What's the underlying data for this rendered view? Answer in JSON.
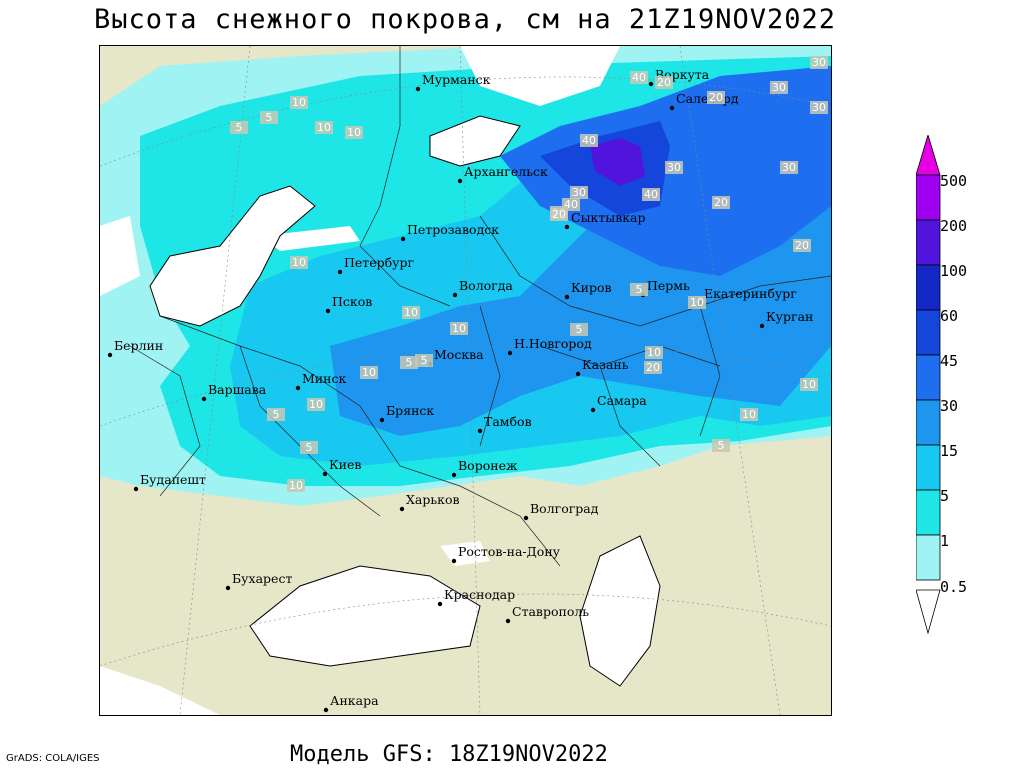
{
  "title": "Высота снежного покрова, см на 21Z19NOV2022",
  "subtitle": "Модель GFS: 18Z19NOV2022",
  "credit": "GrADS: COLA/IGES",
  "colors": {
    "land": "#e6e6c8",
    "water": "#ffffff",
    "snow_05": "#9ff3f3",
    "snow_1": "#1ee6e6",
    "snow_5": "#19c8f0",
    "snow_15": "#1e96f0",
    "snow_30": "#1e6ef0",
    "snow_45": "#1446dc",
    "snow_60": "#1428c8",
    "snow_100": "#5014dc",
    "snow_200": "#a000f0",
    "snow_500": "#e600e6"
  },
  "legend": {
    "levels": [
      "500",
      "200",
      "100",
      "60",
      "45",
      "30",
      "15",
      "5",
      "1",
      "0.5"
    ]
  },
  "cities": [
    {
      "name": "Мурманск"
    },
    {
      "name": "Воркута"
    },
    {
      "name": "Салехард"
    },
    {
      "name": "Архангельск"
    },
    {
      "name": "Сыктывкар"
    },
    {
      "name": "Петрозаводск"
    },
    {
      "name": "Петербург"
    },
    {
      "name": "Вологда"
    },
    {
      "name": "Киров"
    },
    {
      "name": "Пермь"
    },
    {
      "name": "Екатеринбург"
    },
    {
      "name": "Курган"
    },
    {
      "name": "Псков"
    },
    {
      "name": "Берлин"
    },
    {
      "name": "Москва"
    },
    {
      "name": "Н.Новгород"
    },
    {
      "name": "Казань"
    },
    {
      "name": "Варшава"
    },
    {
      "name": "Минск"
    },
    {
      "name": "Брянск"
    },
    {
      "name": "Тамбов"
    },
    {
      "name": "Самара"
    },
    {
      "name": "Киев"
    },
    {
      "name": "Воронеж"
    },
    {
      "name": "Будапешт"
    },
    {
      "name": "Харьков"
    },
    {
      "name": "Волгоград"
    },
    {
      "name": "Ростов-на-Дону"
    },
    {
      "name": "Бухарест"
    },
    {
      "name": "Краснодар"
    },
    {
      "name": "Ставрополь"
    },
    {
      "name": "Анкара"
    }
  ],
  "contour_labels": [
    "40",
    "20",
    "30",
    "30",
    "20",
    "10",
    "10",
    "5",
    "10",
    "5",
    "10",
    "40",
    "30",
    "40",
    "30",
    "40",
    "20",
    "20",
    "30",
    "30",
    "20",
    "20",
    "5",
    "5",
    "10",
    "10",
    "10",
    "20",
    "10",
    "5",
    "5",
    "10",
    "5",
    "10",
    "10",
    "10",
    "5",
    "10",
    "5"
  ]
}
